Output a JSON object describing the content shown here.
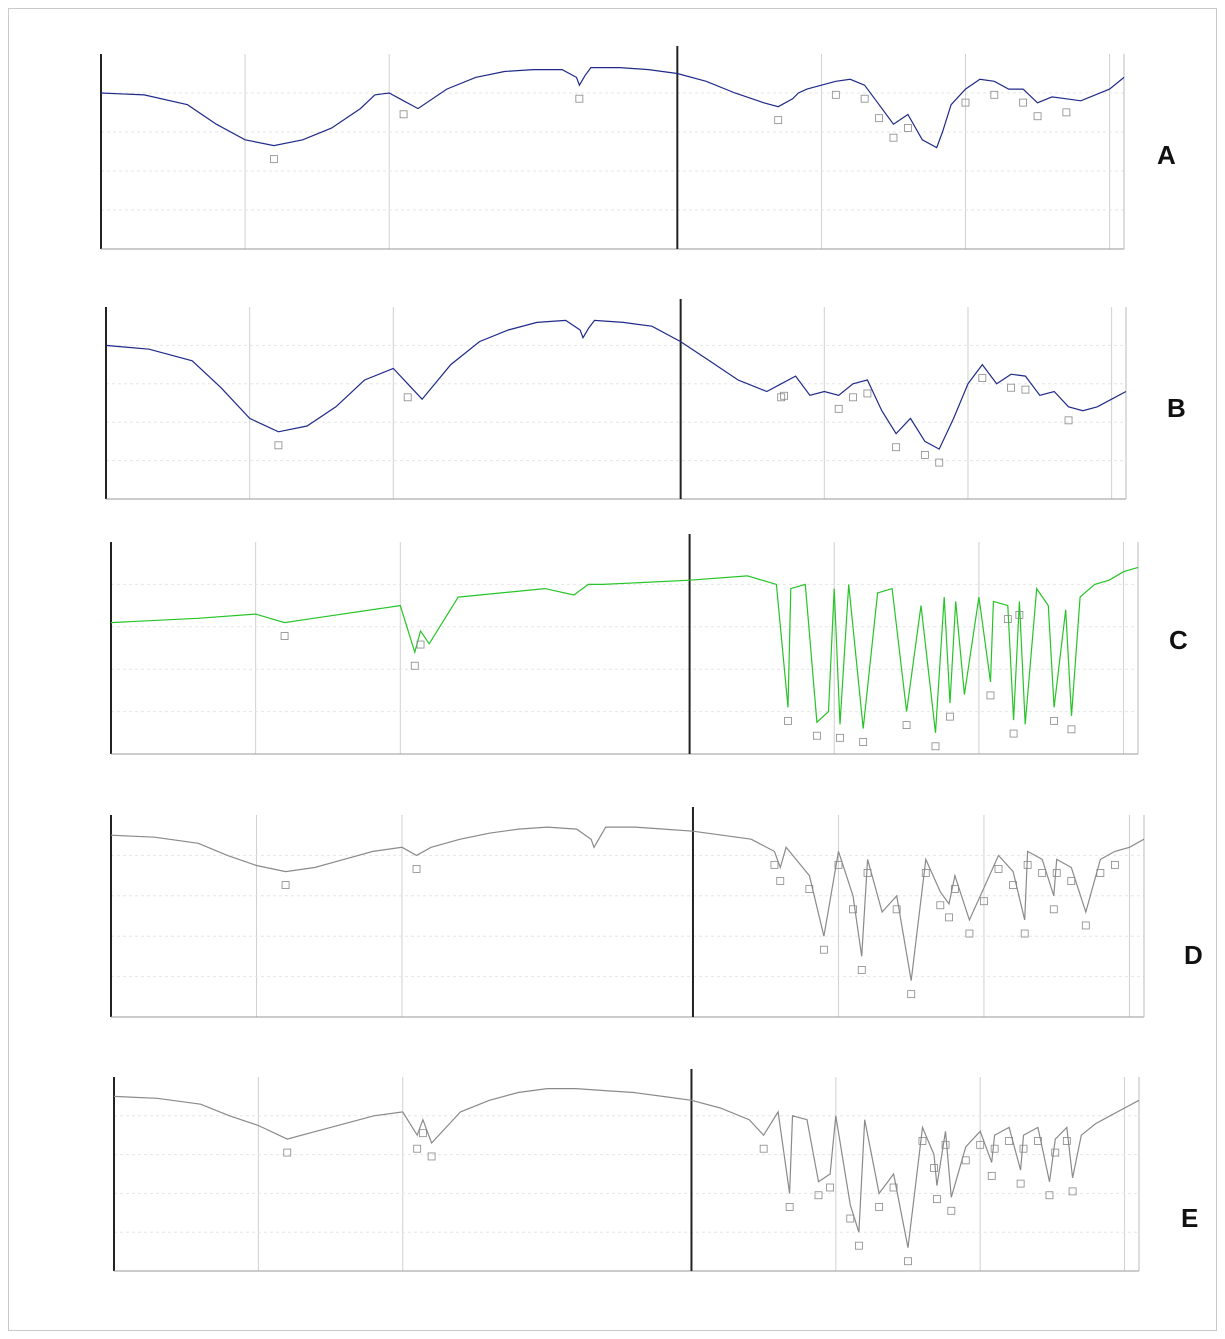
{
  "figure": {
    "colors": {
      "A": "#1f2a88",
      "B": "#1f2a88",
      "C": "#27c427",
      "D": "#8a8a8a",
      "E": "#8a8a8a",
      "grid": "#d0d0d0",
      "axis": "#222222"
    }
  },
  "chart_data": [
    {
      "type": "line",
      "panel": "A",
      "title": "A",
      "xlabel": "",
      "ylabel": "",
      "x_reversed": true,
      "xlim": [
        4000,
        450
      ],
      "ylim": [
        0,
        100
      ],
      "grid": true,
      "series": [
        {
          "color": "#1f2a88",
          "x": [
            4000,
            3850,
            3700,
            3600,
            3500,
            3400,
            3300,
            3200,
            3100,
            3050,
            3000,
            2950,
            2900,
            2800,
            2700,
            2600,
            2500,
            2400,
            2350,
            2340,
            2320,
            2300,
            2200,
            2100,
            2000,
            1900,
            1800,
            1700,
            1650,
            1600,
            1580,
            1550,
            1500,
            1450,
            1400,
            1350,
            1300,
            1250,
            1200,
            1150,
            1100,
            1080,
            1050,
            1000,
            950,
            900,
            850,
            800,
            750,
            700,
            650,
            600,
            550,
            500,
            450
          ],
          "y": [
            80,
            79,
            74,
            64,
            56,
            53,
            56,
            62,
            72,
            79,
            80,
            76,
            72,
            82,
            88,
            91,
            92,
            92,
            88,
            84,
            89,
            93,
            93,
            92,
            90,
            86,
            80,
            75,
            73,
            77,
            80,
            82,
            84,
            86,
            87,
            84,
            74,
            64,
            69,
            56,
            52,
            60,
            74,
            82,
            87,
            86,
            82,
            82,
            75,
            78,
            77,
            76,
            79,
            82,
            88
          ]
        }
      ],
      "peak_markers": [
        3400,
        2950,
        2340,
        1650,
        1450,
        1350,
        1300,
        1250,
        1200,
        1000,
        900,
        800,
        750,
        650
      ]
    },
    {
      "type": "line",
      "panel": "B",
      "title": "B",
      "xlabel": "",
      "ylabel": "",
      "x_reversed": true,
      "xlim": [
        4000,
        450
      ],
      "ylim": [
        0,
        100
      ],
      "grid": true,
      "series": [
        {
          "color": "#1f2a88",
          "x": [
            4000,
            3850,
            3700,
            3600,
            3500,
            3400,
            3300,
            3200,
            3100,
            3000,
            2950,
            2900,
            2800,
            2700,
            2600,
            2500,
            2400,
            2350,
            2340,
            2320,
            2300,
            2200,
            2100,
            2000,
            1900,
            1800,
            1700,
            1650,
            1600,
            1550,
            1500,
            1450,
            1400,
            1350,
            1300,
            1250,
            1200,
            1150,
            1100,
            1050,
            1000,
            950,
            900,
            850,
            800,
            750,
            700,
            650,
            600,
            550,
            500,
            450
          ],
          "y": [
            80,
            78,
            72,
            58,
            42,
            35,
            38,
            48,
            62,
            68,
            60,
            52,
            70,
            82,
            88,
            92,
            93,
            88,
            84,
            89,
            93,
            92,
            90,
            82,
            72,
            62,
            56,
            60,
            64,
            54,
            56,
            54,
            60,
            62,
            46,
            34,
            42,
            30,
            26,
            42,
            60,
            70,
            60,
            65,
            64,
            54,
            56,
            48,
            46,
            48,
            52,
            56
          ]
        }
      ],
      "peak_markers": [
        3400,
        2950,
        1650,
        1640,
        1450,
        1400,
        1350,
        1250,
        1150,
        1100,
        950,
        850,
        800,
        650
      ]
    },
    {
      "type": "line",
      "panel": "C",
      "title": "C",
      "xlabel": "",
      "ylabel": "",
      "x_reversed": true,
      "xlim": [
        4000,
        450
      ],
      "ylim": [
        0,
        100
      ],
      "grid": true,
      "series": [
        {
          "color": "#27c427",
          "x": [
            4000,
            3700,
            3500,
            3400,
            3300,
            3000,
            2950,
            2930,
            2900,
            2800,
            2500,
            2400,
            2350,
            2300,
            2000,
            1800,
            1700,
            1660,
            1650,
            1600,
            1560,
            1520,
            1500,
            1480,
            1450,
            1400,
            1350,
            1300,
            1250,
            1200,
            1150,
            1120,
            1100,
            1080,
            1050,
            1000,
            960,
            950,
            900,
            880,
            860,
            840,
            800,
            760,
            740,
            700,
            680,
            650,
            600,
            550,
            500,
            450
          ],
          "y": [
            62,
            64,
            66,
            62,
            64,
            70,
            48,
            58,
            52,
            74,
            78,
            75,
            80,
            80,
            82,
            84,
            80,
            22,
            78,
            80,
            15,
            20,
            78,
            14,
            80,
            12,
            76,
            78,
            20,
            70,
            10,
            74,
            24,
            72,
            28,
            74,
            34,
            72,
            70,
            16,
            72,
            14,
            78,
            70,
            22,
            68,
            18,
            74,
            80,
            82,
            86,
            88
          ]
        }
      ],
      "peak_markers": [
        3400,
        2950,
        2930,
        1660,
        1560,
        1480,
        1400,
        1250,
        1150,
        1100,
        960,
        900,
        880,
        860,
        740,
        680
      ]
    },
    {
      "type": "line",
      "panel": "D",
      "title": "D",
      "xlabel": "",
      "ylabel": "",
      "x_reversed": true,
      "xlim": [
        4000,
        450
      ],
      "ylim": [
        0,
        100
      ],
      "grid": true,
      "series": [
        {
          "color": "#8a8a8a",
          "x": [
            4000,
            3850,
            3700,
            3600,
            3500,
            3400,
            3300,
            3200,
            3100,
            3000,
            2950,
            2900,
            2800,
            2700,
            2600,
            2500,
            2400,
            2350,
            2340,
            2320,
            2300,
            2200,
            2100,
            2000,
            1900,
            1800,
            1720,
            1700,
            1680,
            1600,
            1550,
            1500,
            1450,
            1420,
            1400,
            1350,
            1300,
            1250,
            1200,
            1150,
            1120,
            1100,
            1050,
            1000,
            950,
            900,
            860,
            850,
            800,
            760,
            750,
            700,
            650,
            600,
            550,
            500,
            450
          ],
          "y": [
            90,
            89,
            86,
            80,
            75,
            72,
            74,
            78,
            82,
            84,
            80,
            84,
            88,
            91,
            93,
            94,
            93,
            88,
            84,
            89,
            94,
            94,
            93,
            92,
            90,
            88,
            82,
            74,
            84,
            70,
            40,
            82,
            60,
            30,
            78,
            52,
            60,
            18,
            78,
            62,
            56,
            70,
            48,
            64,
            80,
            72,
            48,
            82,
            78,
            60,
            78,
            74,
            52,
            78,
            82,
            84,
            88
          ]
        }
      ],
      "peak_markers": [
        3400,
        2950,
        1720,
        1700,
        1600,
        1550,
        1500,
        1450,
        1420,
        1400,
        1300,
        1250,
        1200,
        1150,
        1120,
        1100,
        1050,
        1000,
        950,
        900,
        860,
        850,
        800,
        760,
        750,
        700,
        650,
        600,
        550
      ]
    },
    {
      "type": "line",
      "panel": "E",
      "title": "E",
      "xlabel": "",
      "ylabel": "",
      "x_reversed": true,
      "xlim": [
        4000,
        450
      ],
      "ylim": [
        0,
        100
      ],
      "grid": true,
      "series": [
        {
          "color": "#8a8a8a",
          "x": [
            4000,
            3850,
            3700,
            3600,
            3500,
            3400,
            3300,
            3200,
            3100,
            3000,
            2950,
            2930,
            2900,
            2800,
            2700,
            2600,
            2500,
            2400,
            2300,
            2200,
            2100,
            2000,
            1900,
            1800,
            1750,
            1700,
            1660,
            1650,
            1600,
            1560,
            1520,
            1500,
            1450,
            1420,
            1400,
            1350,
            1300,
            1250,
            1200,
            1160,
            1150,
            1120,
            1100,
            1050,
            1000,
            960,
            950,
            900,
            860,
            850,
            800,
            760,
            740,
            700,
            680,
            650,
            600,
            550,
            500,
            450
          ],
          "y": [
            90,
            89,
            86,
            80,
            75,
            68,
            72,
            76,
            80,
            82,
            70,
            78,
            66,
            82,
            88,
            92,
            94,
            94,
            93,
            92,
            90,
            88,
            84,
            78,
            70,
            82,
            40,
            80,
            78,
            46,
            50,
            80,
            34,
            20,
            78,
            40,
            50,
            12,
            74,
            60,
            44,
            72,
            38,
            64,
            72,
            56,
            70,
            74,
            52,
            70,
            74,
            46,
            68,
            74,
            48,
            70,
            76,
            80,
            84,
            88
          ]
        }
      ],
      "peak_markers": [
        3400,
        2950,
        2930,
        2900,
        1750,
        1660,
        1560,
        1520,
        1450,
        1420,
        1350,
        1300,
        1250,
        1200,
        1160,
        1150,
        1120,
        1100,
        1050,
        1000,
        960,
        950,
        900,
        860,
        850,
        800,
        760,
        740,
        700,
        680
      ]
    }
  ]
}
